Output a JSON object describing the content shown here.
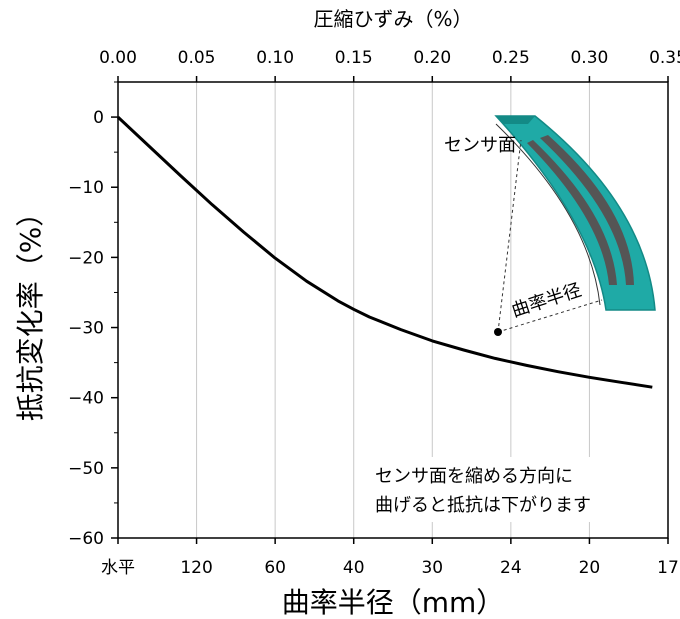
{
  "chart_data": {
    "type": "line",
    "title": "",
    "xlabel": "曲率半径（mm）",
    "x2label": "圧縮ひずみ（%）",
    "ylabel": "抵抗変化率（%）",
    "xlim": [
      0,
      0.35
    ],
    "ylim": [
      -60,
      5
    ],
    "grid": "vertical",
    "x_top_ticks": [
      "0.00",
      "0.05",
      "0.10",
      "0.15",
      "0.20",
      "0.25",
      "0.30",
      "0.35"
    ],
    "x_bottom_ticks": [
      {
        "label": "水平",
        "x": 0.0,
        "gray": true
      },
      {
        "label": "120",
        "x": 0.05
      },
      {
        "label": "60",
        "x": 0.1
      },
      {
        "label": "40",
        "x": 0.15
      },
      {
        "label": "30",
        "x": 0.2
      },
      {
        "label": "24",
        "x": 0.25
      },
      {
        "label": "20",
        "x": 0.3
      },
      {
        "label": "17",
        "x": 0.35
      }
    ],
    "y_ticks": [
      "0",
      "−10",
      "−20",
      "−30",
      "−40",
      "−50",
      "−60"
    ],
    "series": [
      {
        "x": [
          0.0,
          0.02,
          0.04,
          0.06,
          0.08,
          0.1,
          0.12,
          0.14,
          0.15,
          0.16,
          0.18,
          0.2,
          0.22,
          0.24,
          0.26,
          0.28,
          0.3,
          0.32,
          0.34
        ],
        "y": [
          0.0,
          -4.2,
          -8.4,
          -12.5,
          -16.4,
          -20.1,
          -23.4,
          -26.2,
          -27.4,
          -28.5,
          -30.3,
          -31.9,
          -33.2,
          -34.4,
          -35.4,
          -36.3,
          -37.1,
          -37.8,
          -38.5
        ]
      }
    ],
    "annotations": {
      "note_line1": "センサ面を縮める方向に",
      "note_line2": "曲げると抵抗は下がります",
      "inset_sensor_label": "センサ面",
      "inset_radius_label": "曲率半径"
    },
    "colors": {
      "line": "#000000",
      "grid": "#c8c8c8",
      "sensor": "#1faaa6",
      "sensor_dark": "#138a86",
      "strip": "#555555",
      "gray_label": "#808080"
    }
  }
}
